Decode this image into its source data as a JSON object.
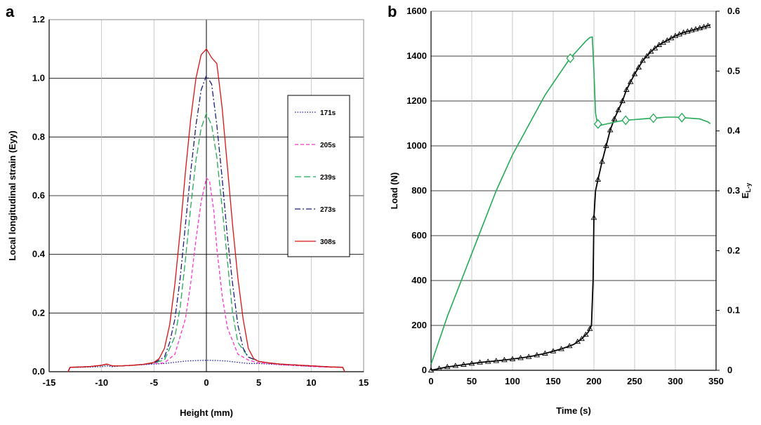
{
  "panels": {
    "a": "a",
    "b": "b"
  },
  "chart_data": [
    {
      "type": "line",
      "xlabel": "Height (mm)",
      "ylabel": "Local longitudinal strain (Eyy)",
      "xlim": [
        -15,
        15
      ],
      "ylim": [
        0,
        1.2
      ],
      "xticks": [
        "-15",
        "-10",
        "-5",
        "0",
        "5",
        "10",
        "15"
      ],
      "yticks": [
        "0.0",
        "0.2",
        "0.4",
        "0.6",
        "0.8",
        "1.0",
        "1.2"
      ],
      "grid": true,
      "legend_position": "right",
      "series": [
        {
          "name": "171s",
          "color": "#1a1a9e",
          "dash": "dotted",
          "x": [
            -13.2,
            -13,
            -12,
            -11,
            -10,
            -9.5,
            -9,
            -8,
            -7,
            -6,
            -5,
            -4,
            -3,
            -2,
            -1,
            0,
            1,
            2,
            3,
            4,
            5,
            6,
            7,
            8,
            9,
            10,
            11,
            12,
            13,
            13.2
          ],
          "y": [
            0,
            0.015,
            0.015,
            0.016,
            0.017,
            0.02,
            0.017,
            0.02,
            0.022,
            0.024,
            0.026,
            0.028,
            0.032,
            0.036,
            0.038,
            0.039,
            0.038,
            0.036,
            0.032,
            0.028,
            0.028,
            0.026,
            0.024,
            0.022,
            0.02,
            0.018,
            0.017,
            0.016,
            0.015,
            0
          ]
        },
        {
          "name": "205s",
          "color": "#ff33cc",
          "dash": "dashed",
          "x": [
            -13.2,
            -13,
            -12,
            -11,
            -10,
            -9.5,
            -9,
            -8,
            -7,
            -6,
            -5,
            -4,
            -3,
            -2,
            -1.5,
            -1,
            -0.5,
            0,
            0.3,
            0.7,
            1,
            1.5,
            2,
            3,
            4,
            5,
            6,
            7,
            8,
            9,
            10,
            11,
            12,
            13,
            13.2
          ],
          "y": [
            0,
            0.015,
            0.016,
            0.018,
            0.022,
            0.025,
            0.02,
            0.02,
            0.022,
            0.025,
            0.028,
            0.03,
            0.06,
            0.18,
            0.3,
            0.45,
            0.58,
            0.66,
            0.65,
            0.55,
            0.42,
            0.26,
            0.15,
            0.06,
            0.04,
            0.03,
            0.028,
            0.024,
            0.022,
            0.02,
            0.018,
            0.016,
            0.015,
            0.015,
            0
          ]
        },
        {
          "name": "239s",
          "color": "#22aa55",
          "dash": "longdash",
          "x": [
            -13.2,
            -13,
            -12,
            -11,
            -10,
            -9.5,
            -9,
            -8,
            -7,
            -6,
            -5,
            -4,
            -3,
            -2.5,
            -2,
            -1.5,
            -1,
            -0.5,
            0,
            0.5,
            1,
            1.5,
            2,
            2.5,
            3,
            4,
            5,
            6,
            7,
            8,
            9,
            10,
            11,
            12,
            13,
            13.2
          ],
          "y": [
            0,
            0.015,
            0.016,
            0.018,
            0.022,
            0.025,
            0.02,
            0.02,
            0.022,
            0.025,
            0.03,
            0.04,
            0.12,
            0.22,
            0.38,
            0.56,
            0.72,
            0.83,
            0.88,
            0.84,
            0.73,
            0.56,
            0.38,
            0.2,
            0.1,
            0.05,
            0.035,
            0.03,
            0.026,
            0.024,
            0.022,
            0.02,
            0.018,
            0.016,
            0.015,
            0
          ]
        },
        {
          "name": "273s",
          "color": "#1a1a7a",
          "dash": "dashdot",
          "x": [
            -13.2,
            -13,
            -12,
            -11,
            -10,
            -9.5,
            -9,
            -8,
            -7,
            -6,
            -5,
            -4,
            -3.5,
            -3,
            -2.5,
            -2,
            -1.5,
            -1,
            -0.5,
            0,
            0.5,
            1,
            1.5,
            2,
            2.5,
            3,
            3.5,
            4,
            5,
            6,
            7,
            8,
            9,
            10,
            11,
            12,
            13,
            13.2
          ],
          "y": [
            0,
            0.015,
            0.016,
            0.018,
            0.022,
            0.025,
            0.02,
            0.02,
            0.022,
            0.025,
            0.03,
            0.05,
            0.1,
            0.18,
            0.32,
            0.5,
            0.68,
            0.84,
            0.96,
            1.01,
            0.98,
            0.84,
            0.66,
            0.46,
            0.3,
            0.16,
            0.08,
            0.05,
            0.035,
            0.03,
            0.026,
            0.024,
            0.022,
            0.02,
            0.018,
            0.016,
            0.015,
            0
          ]
        },
        {
          "name": "308s",
          "color": "#dd1111",
          "dash": "solid",
          "x": [
            -13.2,
            -13,
            -12,
            -11,
            -10,
            -9.5,
            -9,
            -8,
            -7,
            -6,
            -5,
            -4.5,
            -4,
            -3.5,
            -3,
            -2.5,
            -2,
            -1.5,
            -1,
            -0.5,
            0,
            0.5,
            1,
            1.5,
            2,
            2.5,
            3,
            3.5,
            4,
            4.5,
            5,
            6,
            7,
            8,
            9,
            10,
            11,
            12,
            13,
            13.2
          ],
          "y": [
            0,
            0.015,
            0.016,
            0.018,
            0.022,
            0.026,
            0.02,
            0.02,
            0.022,
            0.025,
            0.032,
            0.045,
            0.08,
            0.16,
            0.3,
            0.48,
            0.68,
            0.86,
            1.0,
            1.08,
            1.1,
            1.07,
            1.05,
            0.9,
            0.7,
            0.5,
            0.32,
            0.18,
            0.08,
            0.045,
            0.035,
            0.03,
            0.026,
            0.024,
            0.022,
            0.02,
            0.018,
            0.016,
            0.015,
            0
          ]
        }
      ]
    },
    {
      "type": "line",
      "xlabel": "Time (s)",
      "ylabel": "Load (N)",
      "y2label": "E",
      "y2label_sub": "L-y",
      "xlim": [
        0,
        350
      ],
      "ylim": [
        0,
        1600
      ],
      "y2lim": [
        0,
        0.6
      ],
      "xticks": [
        "0",
        "50",
        "100",
        "150",
        "200",
        "250",
        "300",
        "350"
      ],
      "yticks": [
        "0",
        "200",
        "400",
        "600",
        "800",
        "1000",
        "1200",
        "1400",
        "1600"
      ],
      "y2ticks": [
        "0",
        "0.1",
        "0.2",
        "0.3",
        "0.4",
        "0.5",
        "0.6"
      ],
      "grid": true,
      "series": [
        {
          "axis": "left",
          "color": "#000000",
          "marker": "triangle",
          "x": [
            0,
            20,
            40,
            60,
            80,
            100,
            120,
            140,
            160,
            175,
            185,
            193,
            197,
            199,
            200,
            202,
            205,
            210,
            215,
            220,
            225,
            230,
            235,
            240,
            250,
            260,
            270,
            280,
            290,
            300,
            310,
            320,
            330,
            340,
            343
          ],
          "y": [
            0,
            15,
            25,
            35,
            42,
            50,
            60,
            75,
            95,
            115,
            140,
            170,
            200,
            400,
            680,
            800,
            850,
            930,
            1000,
            1070,
            1120,
            1160,
            1200,
            1250,
            1320,
            1380,
            1420,
            1450,
            1470,
            1490,
            1505,
            1515,
            1525,
            1535,
            1540
          ]
        },
        {
          "axis": "right",
          "color": "#22aa55",
          "marker": "diamond",
          "x": [
            0,
            20,
            40,
            60,
            80,
            100,
            120,
            140,
            160,
            170,
            180,
            190,
            195,
            198,
            200,
            202,
            204,
            206,
            210,
            220,
            230,
            240,
            250,
            260,
            270,
            280,
            290,
            300,
            310,
            320,
            330,
            340,
            343
          ],
          "y": [
            0.01,
            0.09,
            0.16,
            0.23,
            0.3,
            0.36,
            0.41,
            0.46,
            0.5,
            0.52,
            0.535,
            0.55,
            0.556,
            0.557,
            0.5,
            0.43,
            0.415,
            0.408,
            0.41,
            0.413,
            0.416,
            0.418,
            0.419,
            0.42,
            0.421,
            0.422,
            0.423,
            0.423,
            0.422,
            0.421,
            0.42,
            0.415,
            0.412
          ]
        }
      ],
      "markers_left": [
        0,
        10,
        20,
        30,
        40,
        50,
        60,
        70,
        80,
        90,
        100,
        110,
        120,
        130,
        140,
        150,
        160,
        170,
        180,
        185,
        190,
        195,
        200,
        205,
        210,
        215,
        220,
        225,
        230,
        235,
        240,
        245,
        250,
        255,
        260,
        265,
        270,
        275,
        280,
        285,
        290,
        295,
        300,
        305,
        310,
        315,
        320,
        325,
        330,
        335,
        340
      ],
      "markers_right": [
        171,
        205,
        239,
        273,
        308
      ]
    }
  ]
}
